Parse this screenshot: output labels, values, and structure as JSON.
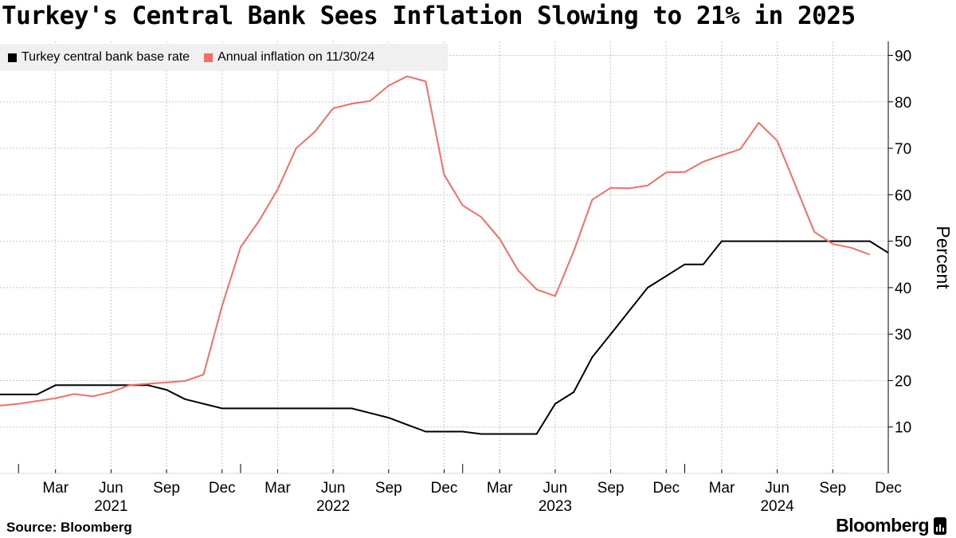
{
  "title": "Turkey's Central Bank Sees Inflation Slowing to 21% in 2025",
  "source": "Source: Bloomberg",
  "brand": "Bloomberg",
  "chart_data": {
    "type": "line",
    "title": "Turkey's Central Bank Sees Inflation Slowing to 21% in 2025",
    "xlabel": "",
    "ylabel": "Percent",
    "ylim": [
      0,
      93
    ],
    "yticks": [
      10,
      20,
      30,
      40,
      50,
      60,
      70,
      80,
      90
    ],
    "grid": true,
    "legend_position": "top-left",
    "x_start": "2020-12",
    "x_end": "2024-12",
    "x_ticks": [
      {
        "label": "Mar",
        "x": "2021-03"
      },
      {
        "label": "Jun",
        "x": "2021-06"
      },
      {
        "label": "Sep",
        "x": "2021-09"
      },
      {
        "label": "Dec",
        "x": "2021-12"
      },
      {
        "label": "Mar",
        "x": "2022-03"
      },
      {
        "label": "Jun",
        "x": "2022-06"
      },
      {
        "label": "Sep",
        "x": "2022-09"
      },
      {
        "label": "Dec",
        "x": "2022-12"
      },
      {
        "label": "Mar",
        "x": "2023-03"
      },
      {
        "label": "Jun",
        "x": "2023-06"
      },
      {
        "label": "Sep",
        "x": "2023-09"
      },
      {
        "label": "Dec",
        "x": "2023-12"
      },
      {
        "label": "Mar",
        "x": "2024-03"
      },
      {
        "label": "Jun",
        "x": "2024-06"
      },
      {
        "label": "Sep",
        "x": "2024-09"
      },
      {
        "label": "Dec",
        "x": "2024-12"
      }
    ],
    "year_labels": [
      {
        "label": "2021",
        "x": "2021-06"
      },
      {
        "label": "2022",
        "x": "2022-06"
      },
      {
        "label": "2023",
        "x": "2023-06"
      },
      {
        "label": "2024",
        "x": "2024-06"
      }
    ],
    "series": [
      {
        "name": "Turkey central bank base rate",
        "color": "#000000",
        "points": [
          [
            "2020-12",
            17
          ],
          [
            "2021-02",
            17
          ],
          [
            "2021-03",
            19
          ],
          [
            "2021-08",
            19
          ],
          [
            "2021-09",
            18
          ],
          [
            "2021-10",
            16
          ],
          [
            "2021-11",
            15
          ],
          [
            "2021-12",
            14
          ],
          [
            "2022-07",
            14
          ],
          [
            "2022-08",
            13
          ],
          [
            "2022-09",
            12
          ],
          [
            "2022-10",
            10.5
          ],
          [
            "2022-11",
            9
          ],
          [
            "2023-01",
            9
          ],
          [
            "2023-02",
            8.5
          ],
          [
            "2023-05",
            8.5
          ],
          [
            "2023-06",
            15
          ],
          [
            "2023-07",
            17.5
          ],
          [
            "2023-08",
            25
          ],
          [
            "2023-09",
            30
          ],
          [
            "2023-10",
            35
          ],
          [
            "2023-11",
            40
          ],
          [
            "2023-12",
            42.5
          ],
          [
            "2024-01",
            45
          ],
          [
            "2024-02",
            45
          ],
          [
            "2024-03",
            50
          ],
          [
            "2024-11",
            50
          ],
          [
            "2024-12",
            47.5
          ]
        ]
      },
      {
        "name": "Annual inflation on 11/30/24",
        "color": "#f07068",
        "points": [
          [
            "2020-12",
            14.6
          ],
          [
            "2021-01",
            15.0
          ],
          [
            "2021-02",
            15.6
          ],
          [
            "2021-03",
            16.2
          ],
          [
            "2021-04",
            17.1
          ],
          [
            "2021-05",
            16.6
          ],
          [
            "2021-06",
            17.5
          ],
          [
            "2021-07",
            19.0
          ],
          [
            "2021-08",
            19.3
          ],
          [
            "2021-09",
            19.6
          ],
          [
            "2021-10",
            19.9
          ],
          [
            "2021-11",
            21.3
          ],
          [
            "2021-12",
            36.1
          ],
          [
            "2022-01",
            48.7
          ],
          [
            "2022-02",
            54.4
          ],
          [
            "2022-03",
            61.1
          ],
          [
            "2022-04",
            70.0
          ],
          [
            "2022-05",
            73.5
          ],
          [
            "2022-06",
            78.6
          ],
          [
            "2022-07",
            79.6
          ],
          [
            "2022-08",
            80.2
          ],
          [
            "2022-09",
            83.5
          ],
          [
            "2022-10",
            85.5
          ],
          [
            "2022-11",
            84.4
          ],
          [
            "2022-12",
            64.3
          ],
          [
            "2023-01",
            57.7
          ],
          [
            "2023-02",
            55.2
          ],
          [
            "2023-03",
            50.5
          ],
          [
            "2023-04",
            43.7
          ],
          [
            "2023-05",
            39.6
          ],
          [
            "2023-06",
            38.2
          ],
          [
            "2023-07",
            47.8
          ],
          [
            "2023-08",
            58.9
          ],
          [
            "2023-09",
            61.5
          ],
          [
            "2023-10",
            61.4
          ],
          [
            "2023-11",
            62.0
          ],
          [
            "2023-12",
            64.8
          ],
          [
            "2024-01",
            64.9
          ],
          [
            "2024-02",
            67.1
          ],
          [
            "2024-03",
            68.5
          ],
          [
            "2024-04",
            69.8
          ],
          [
            "2024-05",
            75.5
          ],
          [
            "2024-06",
            71.6
          ],
          [
            "2024-07",
            61.8
          ],
          [
            "2024-08",
            52.0
          ],
          [
            "2024-09",
            49.4
          ],
          [
            "2024-10",
            48.6
          ],
          [
            "2024-11",
            47.1
          ]
        ]
      }
    ]
  }
}
